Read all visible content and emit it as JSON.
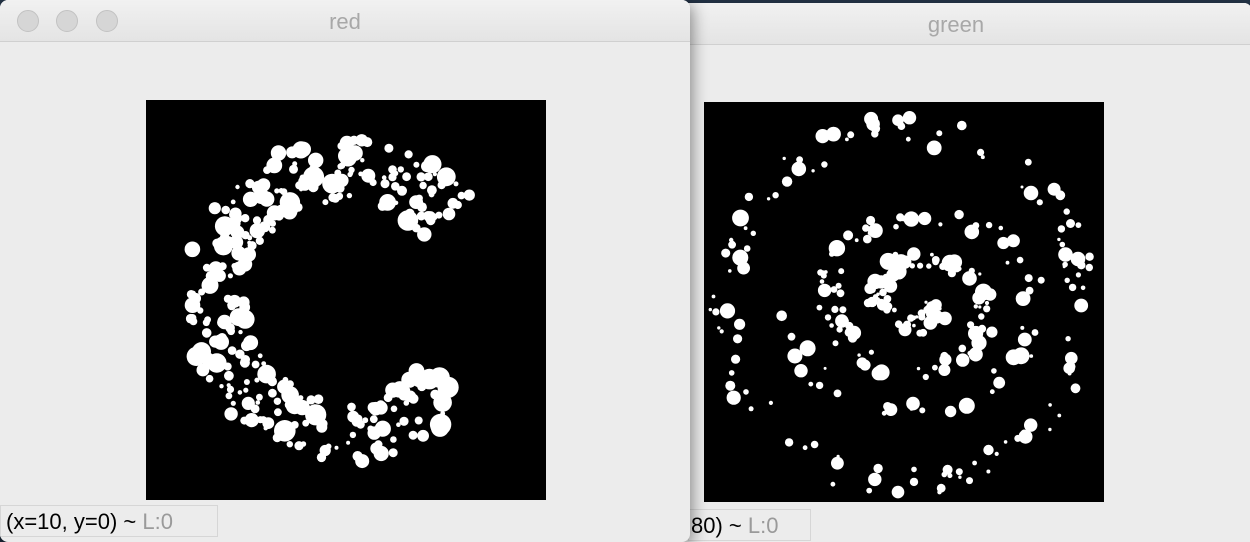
{
  "windows": {
    "red": {
      "title": "red",
      "status_coords": "(x=10, y=0) ~ ",
      "status_level": "L:0"
    },
    "green": {
      "title": "green",
      "status_coords": "80) ~ ",
      "status_level": "L:0"
    }
  },
  "colors": {
    "window_bg": "#ececec",
    "title_text": "#a8a8a8",
    "canvas_bg": "#000000",
    "blob": "#ffffff"
  },
  "icons": {
    "close": "traffic-light-close-icon",
    "minimize": "traffic-light-minimize-icon",
    "zoom": "traffic-light-zoom-icon"
  }
}
